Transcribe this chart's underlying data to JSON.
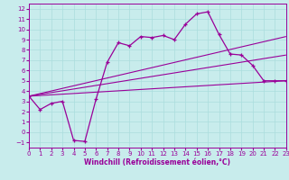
{
  "bg_color": "#c8ecec",
  "line_color": "#990099",
  "grid_color": "#aadddd",
  "xlabel": "Windchill (Refroidissement éolien,°C)",
  "xlim_min": 0,
  "xlim_max": 23,
  "ylim_min": -1.5,
  "ylim_max": 12.5,
  "xticks": [
    0,
    1,
    2,
    3,
    4,
    5,
    6,
    7,
    8,
    9,
    10,
    11,
    12,
    13,
    14,
    15,
    16,
    17,
    18,
    19,
    20,
    21,
    22,
    23
  ],
  "yticks": [
    -1,
    0,
    1,
    2,
    3,
    4,
    5,
    6,
    7,
    8,
    9,
    10,
    11,
    12
  ],
  "main_x": [
    0,
    1,
    2,
    3,
    4,
    5,
    6,
    7,
    8,
    9,
    10,
    11,
    12,
    13,
    14,
    15,
    16,
    17,
    18,
    19,
    20,
    21,
    22,
    23
  ],
  "main_y": [
    3.5,
    2.2,
    2.8,
    3.0,
    -0.8,
    -0.9,
    3.2,
    6.8,
    8.7,
    8.4,
    9.3,
    9.2,
    9.4,
    9.0,
    10.5,
    11.5,
    11.7,
    9.5,
    7.6,
    7.5,
    6.5,
    5.0,
    5.0,
    5.0
  ],
  "fan_lines": [
    {
      "x0": 0,
      "y0": 3.5,
      "x1": 23,
      "y1": 9.3
    },
    {
      "x0": 0,
      "y0": 3.5,
      "x1": 23,
      "y1": 7.5
    },
    {
      "x0": 0,
      "y0": 3.5,
      "x1": 23,
      "y1": 5.0
    }
  ],
  "tick_fontsize": 5,
  "xlabel_fontsize": 5.5,
  "linewidth_main": 0.9,
  "linewidth_fan": 0.8,
  "marker_size": 3.5,
  "spine_lw": 0.7
}
